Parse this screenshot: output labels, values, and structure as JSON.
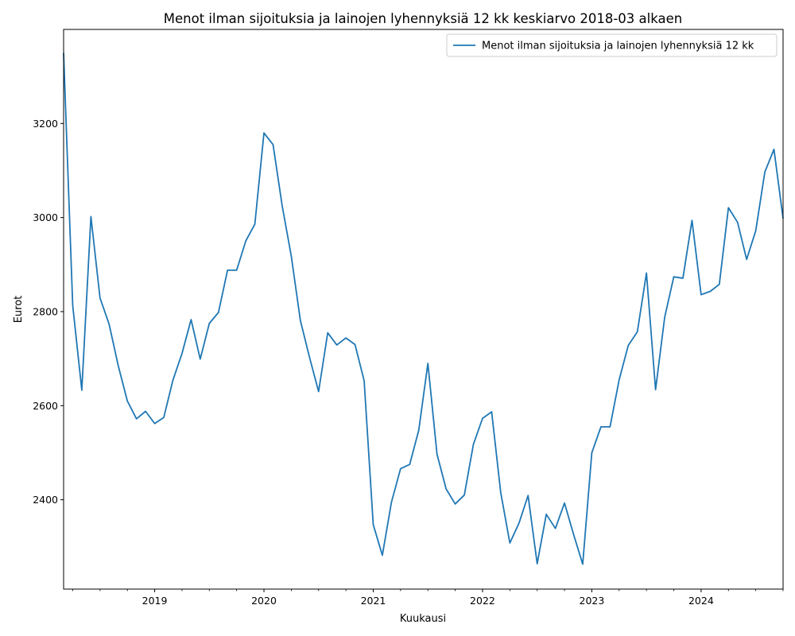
{
  "chart_data": {
    "type": "line",
    "title": "Menot ilman sijoituksia ja lainojen lyhennyksiä 12 kk keskiarvo 2018-03 alkaen",
    "xlabel": "Kuukausi",
    "ylabel": "Eurot",
    "xlim": [
      "2018-03",
      "2024-10"
    ],
    "ylim": [
      2210,
      3400
    ],
    "x_major_ticks": [
      "2019",
      "2020",
      "2021",
      "2022",
      "2023",
      "2024"
    ],
    "y_ticks": [
      2400,
      2600,
      2800,
      3000,
      3200
    ],
    "grid": false,
    "legend_position": "upper right",
    "series": [
      {
        "name": "Menot ilman sijoituksia ja lainojen lyhennyksiä 12 kk",
        "color": "#1f77b4",
        "x": [
          "2018-03",
          "2018-04",
          "2018-05",
          "2018-06",
          "2018-07",
          "2018-08",
          "2018-09",
          "2018-10",
          "2018-11",
          "2018-12",
          "2019-01",
          "2019-02",
          "2019-03",
          "2019-04",
          "2019-05",
          "2019-06",
          "2019-07",
          "2019-08",
          "2019-09",
          "2019-10",
          "2019-11",
          "2019-12",
          "2020-01",
          "2020-02",
          "2020-03",
          "2020-04",
          "2020-05",
          "2020-06",
          "2020-07",
          "2020-08",
          "2020-09",
          "2020-10",
          "2020-11",
          "2020-12",
          "2021-01",
          "2021-02",
          "2021-03",
          "2021-04",
          "2021-05",
          "2021-06",
          "2021-07",
          "2021-08",
          "2021-09",
          "2021-10",
          "2021-11",
          "2021-12",
          "2022-01",
          "2022-02",
          "2022-03",
          "2022-04",
          "2022-05",
          "2022-06",
          "2022-07",
          "2022-08",
          "2022-09",
          "2022-10",
          "2022-11",
          "2022-12",
          "2023-01",
          "2023-02",
          "2023-03",
          "2023-04",
          "2023-05",
          "2023-06",
          "2023-07",
          "2023-08",
          "2023-09",
          "2023-10",
          "2023-11",
          "2023-12",
          "2024-01",
          "2024-02",
          "2024-03",
          "2024-04",
          "2024-05",
          "2024-06",
          "2024-07",
          "2024-08",
          "2024-09",
          "2024-10"
        ],
        "values": [
          3350,
          2813,
          2633,
          3002,
          2829,
          2773,
          2685,
          2610,
          2572,
          2588,
          2562,
          2575,
          2654,
          2711,
          2783,
          2699,
          2775,
          2798,
          2888,
          2888,
          2950,
          2986,
          3180,
          3155,
          3025,
          2918,
          2781,
          2703,
          2630,
          2755,
          2729,
          2744,
          2730,
          2653,
          2347,
          2282,
          2395,
          2466,
          2475,
          2548,
          2690,
          2497,
          2423,
          2391,
          2410,
          2518,
          2573,
          2587,
          2415,
          2308,
          2350,
          2409,
          2264,
          2369,
          2339,
          2393,
          2326,
          2263,
          2500,
          2555,
          2555,
          2655,
          2728,
          2757,
          2882,
          2634,
          2788,
          2874,
          2871,
          2994,
          2836,
          2843,
          2858,
          3021,
          2990,
          2911,
          2972,
          3097,
          3145,
          2998
        ]
      }
    ]
  }
}
